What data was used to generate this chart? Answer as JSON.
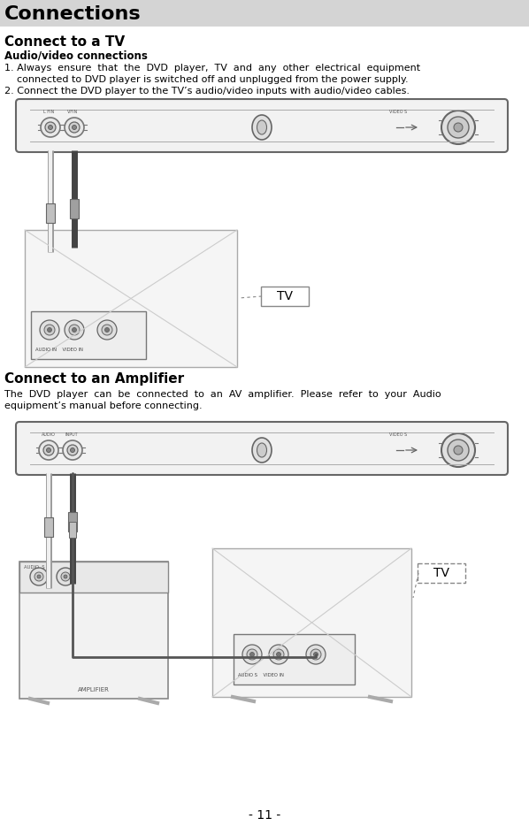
{
  "title": "Connections",
  "title_bg": "#d4d4d4",
  "section1_title": "Connect to a TV",
  "section1_subtitle": "Audio/video connections",
  "section1_text1_line1": "1. Always  ensure  that  the  DVD  player,  TV  and  any  other  electrical  equipment",
  "section1_text1_line2": "    connected to DVD player is switched off and unplugged from the power supply.",
  "section1_text2": "2. Connect the DVD player to the TV’s audio/video inputs with audio/video cables.",
  "section2_title": "Connect to an Amplifier",
  "section2_text_line1": "The  DVD  player  can  be  connected  to  an  AV  amplifier.  Please  refer  to  your  Audio",
  "section2_text_line2": "equipment’s manual before connecting.",
  "footer": "- 11 -",
  "bg_color": "#ffffff",
  "text_color": "#000000"
}
